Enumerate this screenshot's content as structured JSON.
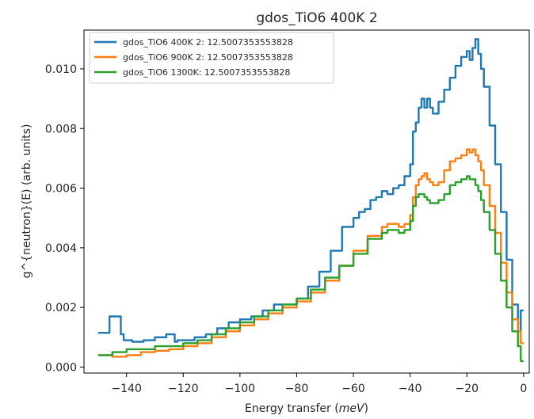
{
  "chart_data": {
    "type": "line",
    "title": "gdos_TiO6 400K 2",
    "xlabel": "Energy transfer (meV)",
    "xlabel_prefix": "Energy transfer (",
    "xlabel_unit": "meV",
    "xlabel_suffix": ")",
    "ylabel": "g^{neutron}(E) (arb. units)",
    "xlim": [
      -155,
      2
    ],
    "ylim": [
      -0.0002,
      0.0113
    ],
    "xticks": [
      -140,
      -120,
      -100,
      -80,
      -60,
      -40,
      -20,
      0
    ],
    "xtick_labels": [
      "−140",
      "−120",
      "−100",
      "−80",
      "−60",
      "−40",
      "−20",
      "0"
    ],
    "yticks": [
      0.0,
      0.002,
      0.004,
      0.006,
      0.008,
      0.01
    ],
    "ytick_labels": [
      "0.000",
      "0.002",
      "0.004",
      "0.006",
      "0.008",
      "0.010"
    ],
    "grid": false,
    "legend_position": "top-left",
    "series": [
      {
        "name": "gdos_TiO6 400K 2: 12.5007353553828",
        "color": "#1f77b4",
        "x": [
          -150,
          -146,
          -145,
          -142,
          -141,
          -138,
          -134,
          -130,
          -126,
          -123,
          -122,
          -119,
          -116,
          -112,
          -108,
          -104,
          -100,
          -96,
          -92,
          -88,
          -84,
          -80,
          -76,
          -72,
          -68,
          -64,
          -60,
          -58,
          -56,
          -54,
          -52,
          -50,
          -48,
          -46,
          -44,
          -42,
          -40,
          -39,
          -38,
          -37,
          -36,
          -35,
          -34,
          -33,
          -32,
          -30,
          -28,
          -26,
          -24,
          -22,
          -20,
          -19,
          -18,
          -17,
          -16,
          -15,
          -14,
          -12,
          -10,
          -8,
          -6,
          -4,
          -2,
          -1,
          0
        ],
        "y": [
          0.00115,
          0.00115,
          0.0017,
          0.0017,
          0.0011,
          0.0009,
          0.00085,
          0.0009,
          0.001,
          0.0011,
          0.00085,
          0.0009,
          0.0009,
          0.001,
          0.0011,
          0.0013,
          0.0015,
          0.0016,
          0.0017,
          0.0019,
          0.0021,
          0.0021,
          0.0023,
          0.0027,
          0.0032,
          0.0039,
          0.0047,
          0.005,
          0.0052,
          0.0053,
          0.0056,
          0.0057,
          0.0059,
          0.0058,
          0.006,
          0.0061,
          0.0064,
          0.0068,
          0.0079,
          0.0082,
          0.0087,
          0.009,
          0.0087,
          0.009,
          0.0087,
          0.0085,
          0.0089,
          0.0093,
          0.0097,
          0.0101,
          0.0104,
          0.0106,
          0.0103,
          0.0107,
          0.011,
          0.0105,
          0.01,
          0.0094,
          0.0081,
          0.0068,
          0.0052,
          0.0036,
          0.0021,
          0.0012,
          0.0019
        ]
      },
      {
        "name": "gdos_TiO6 900K 2: 12.5007353553828",
        "color": "#ff7f0e",
        "x": [
          -150,
          -145,
          -140,
          -135,
          -130,
          -125,
          -120,
          -115,
          -110,
          -105,
          -100,
          -95,
          -90,
          -85,
          -80,
          -75,
          -70,
          -65,
          -60,
          -55,
          -50,
          -48,
          -46,
          -44,
          -42,
          -40,
          -39,
          -38,
          -37,
          -36,
          -35,
          -34,
          -33,
          -32,
          -30,
          -28,
          -26,
          -24,
          -22,
          -20,
          -19,
          -18,
          -17,
          -16,
          -15,
          -14,
          -12,
          -10,
          -8,
          -6,
          -4,
          -2,
          -1,
          0
        ],
        "y": [
          0.0004,
          0.0004,
          0.00035,
          0.0004,
          0.0005,
          0.00055,
          0.0006,
          0.0007,
          0.0008,
          0.001,
          0.0012,
          0.0014,
          0.0016,
          0.0018,
          0.002,
          0.0022,
          0.0025,
          0.0029,
          0.0034,
          0.0039,
          0.0044,
          0.0047,
          0.0048,
          0.0048,
          0.0047,
          0.0048,
          0.0051,
          0.0057,
          0.0061,
          0.0063,
          0.0064,
          0.0065,
          0.0063,
          0.0062,
          0.0061,
          0.0062,
          0.0066,
          0.0069,
          0.007,
          0.0071,
          0.0073,
          0.0072,
          0.0073,
          0.0071,
          0.0069,
          0.0066,
          0.0061,
          0.0054,
          0.0045,
          0.0035,
          0.0025,
          0.0016,
          0.0012,
          0.0008
        ]
      },
      {
        "name": "gdos_TiO6 1300K: 12.5007353553828",
        "color": "#2ca02c",
        "x": [
          -150,
          -145,
          -140,
          -135,
          -130,
          -125,
          -120,
          -115,
          -110,
          -105,
          -100,
          -95,
          -90,
          -85,
          -80,
          -75,
          -70,
          -65,
          -60,
          -55,
          -50,
          -48,
          -46,
          -44,
          -42,
          -40,
          -39,
          -38,
          -37,
          -36,
          -35,
          -34,
          -33,
          -32,
          -30,
          -28,
          -26,
          -24,
          -22,
          -20,
          -19,
          -18,
          -17,
          -16,
          -15,
          -14,
          -12,
          -10,
          -8,
          -6,
          -4,
          -2,
          -1,
          0
        ],
        "y": [
          0.0004,
          0.0004,
          0.0005,
          0.0006,
          0.0006,
          0.0007,
          0.0007,
          0.0008,
          0.0009,
          0.0011,
          0.0013,
          0.0015,
          0.0017,
          0.0019,
          0.0021,
          0.0023,
          0.0026,
          0.003,
          0.0034,
          0.0038,
          0.0043,
          0.0045,
          0.0046,
          0.0046,
          0.0045,
          0.0046,
          0.0049,
          0.0054,
          0.0057,
          0.0058,
          0.0058,
          0.0057,
          0.0056,
          0.0055,
          0.0055,
          0.0056,
          0.0058,
          0.0061,
          0.0062,
          0.0063,
          0.0064,
          0.0063,
          0.0063,
          0.0061,
          0.0059,
          0.0056,
          0.0052,
          0.0046,
          0.0038,
          0.0029,
          0.002,
          0.0012,
          0.0007,
          0.0002
        ]
      }
    ]
  }
}
